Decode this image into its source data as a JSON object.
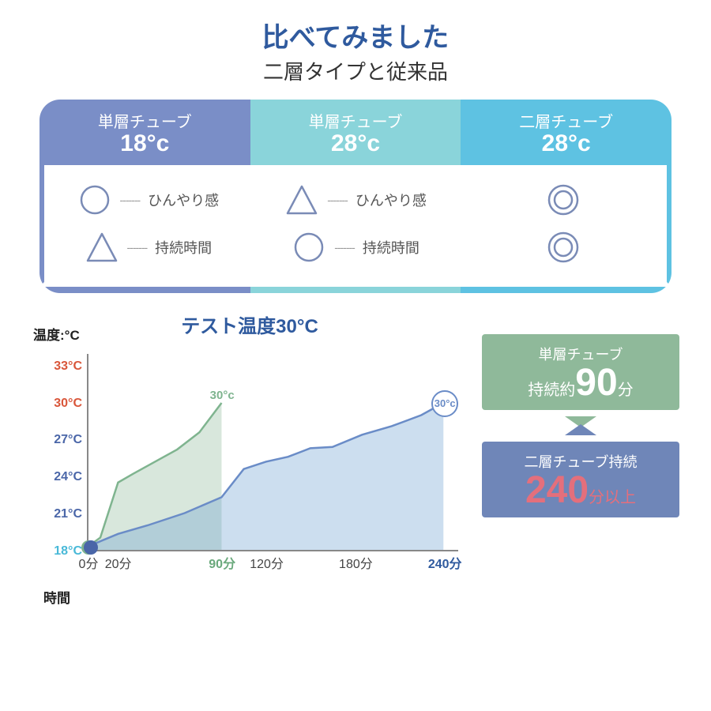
{
  "colors": {
    "brand_blue": "#2f5a9e",
    "col1": "#7a8ec7",
    "col2": "#8ad4da",
    "col3": "#5ec2e2",
    "mark_stroke": "#7a8bb6",
    "green_series": "#7fb48f",
    "blue_series": "#6a8cc7",
    "orange": "#d9563a",
    "ytick_normal": "#4a66a8",
    "ytick_18": "#49b9d8",
    "stat_green_bg": "#8fb99a",
    "stat_blue_bg": "#6f86b8",
    "stat_pink": "#e46f7c"
  },
  "title": {
    "main": "比べてみました",
    "sub": "二層タイプと従来品"
  },
  "comparison": {
    "columns": [
      {
        "name": "単層チューブ",
        "temp": "18°c"
      },
      {
        "name": "単層チューブ",
        "temp": "28°c"
      },
      {
        "name": "二層チューブ",
        "temp": "28°c"
      }
    ],
    "rows": [
      {
        "label": "ひんやり感",
        "marks": [
          "circle",
          "triangle",
          "double"
        ]
      },
      {
        "label": "持続時間",
        "marks": [
          "triangle",
          "circle",
          "double"
        ]
      }
    ]
  },
  "chart": {
    "title": "テスト温度30°C",
    "y_axis_label": "温度:°C",
    "x_axis_label": "時間",
    "y_ticks": [
      {
        "label": "33°C",
        "value": 33,
        "color": "#d9563a"
      },
      {
        "label": "30°C",
        "value": 30,
        "color": "#d9563a"
      },
      {
        "label": "27°C",
        "value": 27,
        "color": "#4a66a8"
      },
      {
        "label": "24°C",
        "value": 24,
        "color": "#4a66a8"
      },
      {
        "label": "21°C",
        "value": 21,
        "color": "#4a66a8"
      },
      {
        "label": "18°C",
        "value": 18,
        "color": "#49b9d8"
      }
    ],
    "y_domain": [
      18,
      34
    ],
    "x_ticks": [
      {
        "label": "0分",
        "value": 0,
        "color": "#444"
      },
      {
        "label": "20分",
        "value": 20,
        "color": "#444"
      },
      {
        "label": "90分",
        "value": 90,
        "color": "#6aa97c",
        "bold": true
      },
      {
        "label": "120分",
        "value": 120,
        "color": "#444"
      },
      {
        "label": "180分",
        "value": 180,
        "color": "#444"
      },
      {
        "label": "240分",
        "value": 240,
        "color": "#2f5a9e",
        "bold": true
      }
    ],
    "x_domain": [
      0,
      250
    ],
    "series": [
      {
        "name": "green",
        "color": "#7fb48f",
        "fill": "rgba(143,185,154,0.35)",
        "end_label": "30°c",
        "end_label_style": "text",
        "points": [
          {
            "x": 0,
            "y": 18.3
          },
          {
            "x": 8,
            "y": 19
          },
          {
            "x": 20,
            "y": 23.5
          },
          {
            "x": 30,
            "y": 24.2
          },
          {
            "x": 45,
            "y": 25.2
          },
          {
            "x": 60,
            "y": 26.2
          },
          {
            "x": 75,
            "y": 27.6
          },
          {
            "x": 90,
            "y": 30
          }
        ]
      },
      {
        "name": "blue",
        "color": "#6a8cc7",
        "fill": "rgba(110,160,210,0.35)",
        "end_label": "30°c",
        "end_label_style": "circle",
        "points": [
          {
            "x": 0,
            "y": 18.3
          },
          {
            "x": 20,
            "y": 19.3
          },
          {
            "x": 40,
            "y": 20
          },
          {
            "x": 65,
            "y": 21
          },
          {
            "x": 90,
            "y": 22.3
          },
          {
            "x": 105,
            "y": 24.6
          },
          {
            "x": 120,
            "y": 25.2
          },
          {
            "x": 135,
            "y": 25.6
          },
          {
            "x": 150,
            "y": 26.3
          },
          {
            "x": 165,
            "y": 26.4
          },
          {
            "x": 185,
            "y": 27.4
          },
          {
            "x": 205,
            "y": 28.1
          },
          {
            "x": 225,
            "y": 29
          },
          {
            "x": 240,
            "y": 30
          }
        ]
      }
    ],
    "start_dot_colors": [
      "#7fb48f",
      "#4a66a8"
    ]
  },
  "stats": {
    "box1": {
      "line1": "単層チューブ",
      "prefix": "持続約",
      "big": "90",
      "unit": "分"
    },
    "box2": {
      "line1": "二層チューブ持続",
      "big": "240",
      "unit": "分以上"
    }
  }
}
